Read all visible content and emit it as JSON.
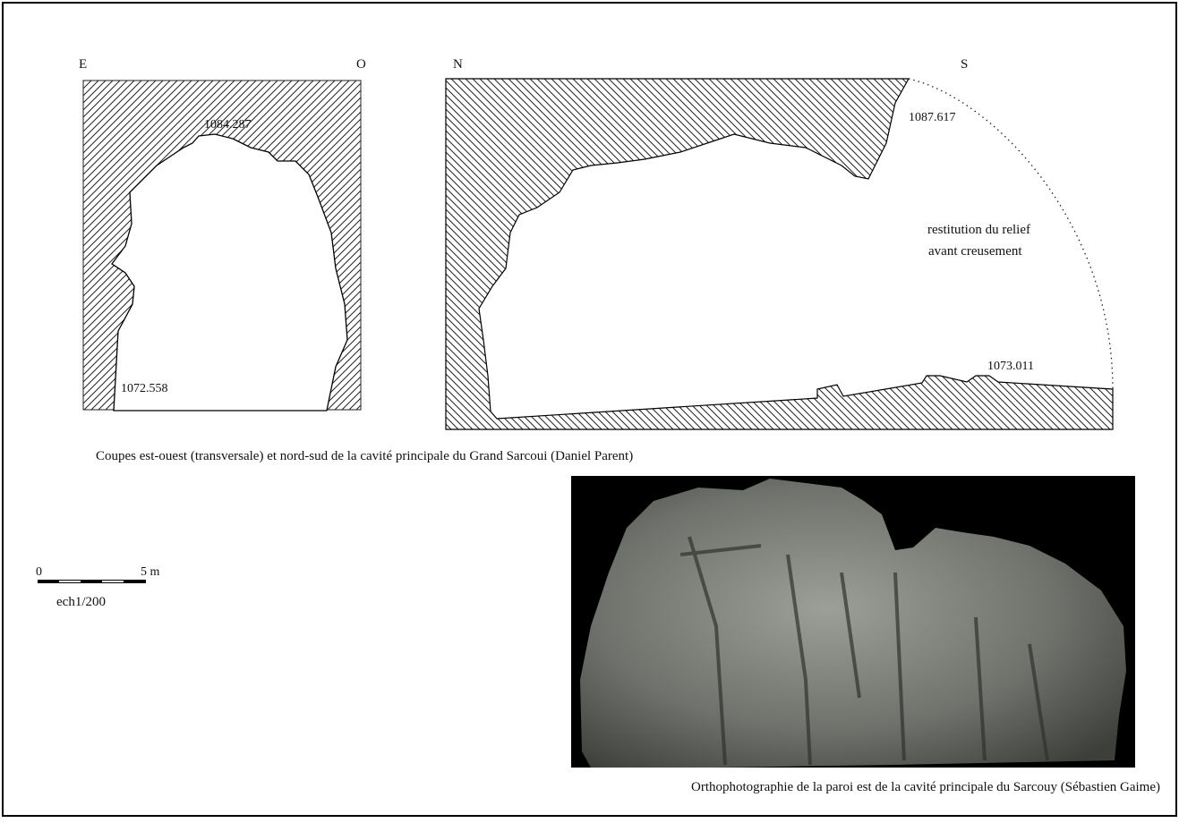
{
  "section_left": {
    "west_label": "E",
    "east_label": "O",
    "top_elevation": "1084.287",
    "bottom_elevation": "1072.558"
  },
  "section_right": {
    "north_label": "N",
    "south_label": "S",
    "top_elevation": "1087.617",
    "bottom_elevation": "1073.011",
    "note_line1": "restitution du relief",
    "note_line2": "avant creusement"
  },
  "caption_sections": "Coupes est-ouest (transversale) et nord-sud de la cavité principale du Grand Sarcoui (Daniel Parent)",
  "scale": {
    "start": "0",
    "end": "5 m",
    "ratio": "ech1/200"
  },
  "caption_photo": "Orthophotographie de la paroi est de la cavité principale du Sarcouy (Sébastien Gaime)"
}
